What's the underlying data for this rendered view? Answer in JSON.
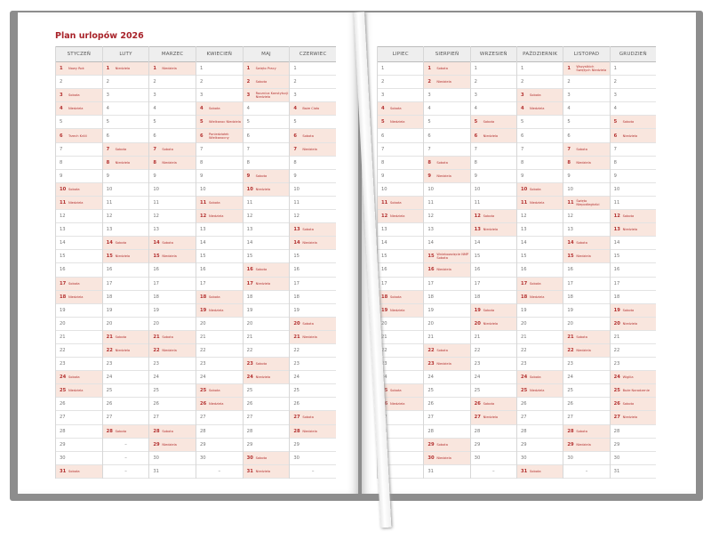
{
  "title": "Plan urlopów 2026",
  "placeholder": "–",
  "months": [
    {
      "name": "STYCZEŃ",
      "count": 31,
      "notes": {
        "1": "Nowy Rok",
        "3": "Sobota",
        "4": "Niedziela",
        "6": "Trzech Króli",
        "10": "Sobota",
        "11": "Niedziela",
        "17": "Sobota",
        "18": "Niedziela",
        "24": "Sobota",
        "25": "Niedziela",
        "31": "Sobota"
      }
    },
    {
      "name": "LUTY",
      "count": 28,
      "notes": {
        "1": "Niedziela",
        "7": "Sobota",
        "8": "Niedziela",
        "14": "Sobota",
        "15": "Niedziela",
        "21": "Sobota",
        "22": "Niedziela",
        "28": "Sobota"
      }
    },
    {
      "name": "MARZEC",
      "count": 31,
      "notes": {
        "1": "Niedziela",
        "7": "Sobota",
        "8": "Niedziela",
        "14": "Sobota",
        "15": "Niedziela",
        "21": "Sobota",
        "22": "Niedziela",
        "28": "Sobota",
        "29": "Niedziela"
      }
    },
    {
      "name": "KWIECIEŃ",
      "count": 30,
      "notes": {
        "4": "Sobota",
        "5": "Wielkanoc Niedziela",
        "6": "Poniedziałek Wielkanocny",
        "11": "Sobota",
        "12": "Niedziela",
        "18": "Sobota",
        "19": "Niedziela",
        "25": "Sobota",
        "26": "Niedziela"
      }
    },
    {
      "name": "MAJ",
      "count": 31,
      "notes": {
        "1": "Święto Pracy",
        "2": "Sobota",
        "3": "Rocznica Konstytucji Niedziela",
        "9": "Sobota",
        "10": "Niedziela",
        "16": "Sobota",
        "17": "Niedziela",
        "23": "Sobota",
        "24": "Niedziela",
        "30": "Sobota",
        "31": "Niedziela"
      }
    },
    {
      "name": "CZERWIEC",
      "count": 30,
      "notes": {
        "4": "Boże Ciało",
        "6": "Sobota",
        "7": "Niedziela",
        "13": "Sobota",
        "14": "Niedziela",
        "20": "Sobota",
        "21": "Niedziela",
        "27": "Sobota",
        "28": "Niedziela"
      }
    },
    {
      "name": "LIPIEC",
      "count": 31,
      "notes": {
        "4": "Sobota",
        "5": "Niedziela",
        "11": "Sobota",
        "12": "Niedziela",
        "18": "Sobota",
        "19": "Niedziela",
        "25": "Sobota",
        "26": "Niedziela"
      }
    },
    {
      "name": "SIERPIEŃ",
      "count": 31,
      "notes": {
        "1": "Sobota",
        "2": "Niedziela",
        "8": "Sobota",
        "9": "Niedziela",
        "15": "Wniebowzięcie NMP Sobota",
        "16": "Niedziela",
        "22": "Sobota",
        "23": "Niedziela",
        "29": "Sobota",
        "30": "Niedziela"
      }
    },
    {
      "name": "WRZESIEŃ",
      "count": 30,
      "notes": {
        "5": "Sobota",
        "6": "Niedziela",
        "12": "Sobota",
        "13": "Niedziela",
        "19": "Sobota",
        "20": "Niedziela",
        "26": "Sobota",
        "27": "Niedziela"
      }
    },
    {
      "name": "PAŹDZIERNIK",
      "count": 31,
      "notes": {
        "3": "Sobota",
        "4": "Niedziela",
        "10": "Sobota",
        "11": "Niedziela",
        "17": "Sobota",
        "18": "Niedziela",
        "24": "Sobota",
        "25": "Niedziela",
        "31": "Sobota"
      }
    },
    {
      "name": "LISTOPAD",
      "count": 30,
      "notes": {
        "1": "Wszystkich Świętych Niedziela",
        "7": "Sobota",
        "8": "Niedziela",
        "11": "Święto Niepodległości",
        "14": "Sobota",
        "15": "Niedziela",
        "21": "Sobota",
        "22": "Niedziela",
        "28": "Sobota",
        "29": "Niedziela"
      }
    },
    {
      "name": "GRUDZIEŃ",
      "count": 31,
      "notes": {
        "5": "Sobota",
        "6": "Niedziela",
        "12": "Sobota",
        "13": "Niedziela",
        "19": "Sobota",
        "20": "Niedziela",
        "24": "Wigilia",
        "25": "Boże Narodzenie",
        "26": "Sobota",
        "27": "Niedziela"
      }
    }
  ],
  "colors": {
    "accent": "#a8232a",
    "highlight": "#f9e6de",
    "cover": "#8d8d8d"
  }
}
